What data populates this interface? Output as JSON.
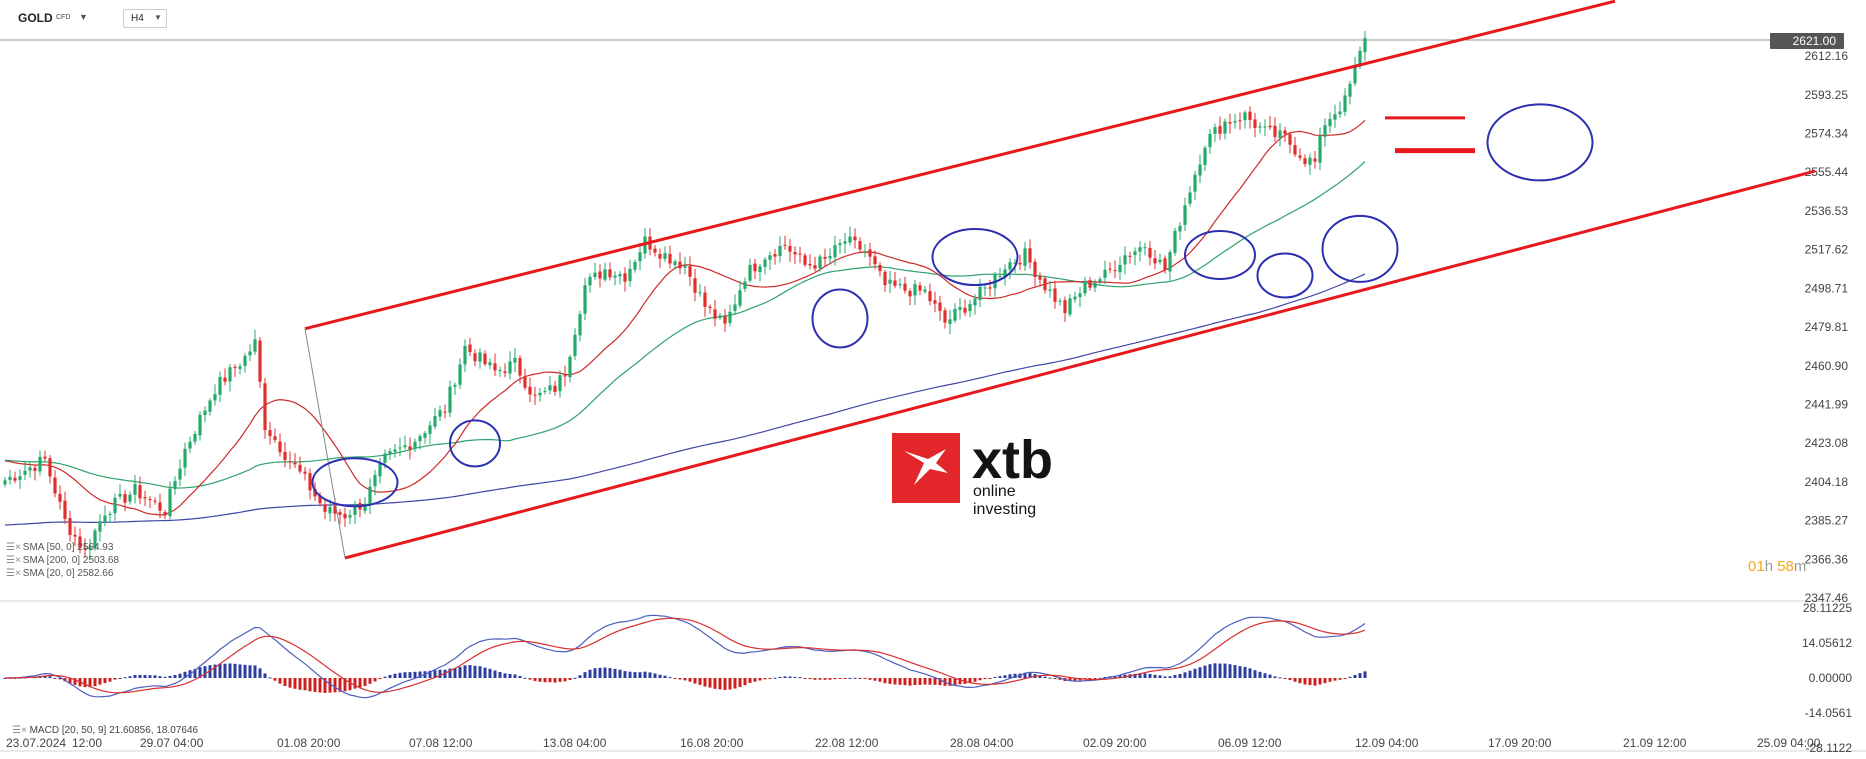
{
  "header": {
    "symbol": "GOLD",
    "symbol_type": "CFD",
    "timeframe": "H4",
    "caret_icon": "chevron-down-icon"
  },
  "last_price": "2621.00",
  "countdown": {
    "h": "01",
    "h_unit": "h",
    "m": "58",
    "m_unit": "m"
  },
  "logo": {
    "text": "xtb",
    "subtitle": "online investing",
    "color": "#e3262a"
  },
  "indicators": [
    {
      "label": "SMA [50, 0]",
      "value": "2564.93",
      "color": "#2ea36b"
    },
    {
      "label": "SMA [200, 0]",
      "value": "2503.68",
      "color": "#3f47a6"
    },
    {
      "label": "SMA [20, 0]",
      "value": "2582.66",
      "color": "#cc2a2a"
    }
  ],
  "macd": {
    "label": "MACD [20, 50, 9]",
    "macd_value": "21.60856",
    "signal_value": "18.07646"
  },
  "colors": {
    "bull": "#26a96c",
    "bear": "#e0302e",
    "sma20": "#cc2a2a",
    "sma50": "#2ea36b",
    "sma200": "#3f47a6",
    "macd_line": "#4a5fc0",
    "signal_line": "#d93030",
    "hist_pos": "#2d3d9e",
    "hist_neg": "#cc2020",
    "annotation_red": "#e8191c",
    "annotation_blue": "#2b2fb0",
    "price_tag": "#555555"
  },
  "chart_data": {
    "type": "candlestick",
    "instrument": "GOLD",
    "timeframe": "H4",
    "x_labels": [
      "23.07.2024",
      "12:00",
      "29.07 04:00",
      "01.08 20:00",
      "07.08 12:00",
      "13.08 04:00",
      "16.08 20:00",
      "22.08 12:00",
      "28.08 04:00",
      "02.09 20:00",
      "06.09 12:00",
      "12.09 04:00",
      "17.09 20:00",
      "21.09 12:00",
      "25.09 04:00"
    ],
    "price_ticks": [
      "2612.16",
      "2593.25",
      "2574.34",
      "2555.44",
      "2536.53",
      "2517.62",
      "2498.71",
      "2479.81",
      "2460.90",
      "2441.99",
      "2423.08",
      "2404.18",
      "2385.27",
      "2366.36",
      "2347.46"
    ],
    "price_range": [
      2347.46,
      2621.0
    ],
    "macd_ticks": [
      "28.11225",
      "14.05612",
      "0.00000",
      "-14.0561",
      "-28.1122"
    ],
    "macd_range": [
      -28.1122,
      28.11225
    ],
    "close_keypoints": [
      {
        "i": 0,
        "v": 2405
      },
      {
        "i": 8,
        "v": 2415
      },
      {
        "i": 12,
        "v": 2385
      },
      {
        "i": 16,
        "v": 2370
      },
      {
        "i": 20,
        "v": 2390
      },
      {
        "i": 26,
        "v": 2400
      },
      {
        "i": 32,
        "v": 2390
      },
      {
        "i": 36,
        "v": 2420
      },
      {
        "i": 42,
        "v": 2450
      },
      {
        "i": 48,
        "v": 2465
      },
      {
        "i": 50,
        "v": 2472
      },
      {
        "i": 52,
        "v": 2432
      },
      {
        "i": 56,
        "v": 2418
      },
      {
        "i": 60,
        "v": 2405
      },
      {
        "i": 64,
        "v": 2390
      },
      {
        "i": 68,
        "v": 2388
      },
      {
        "i": 72,
        "v": 2395
      },
      {
        "i": 76,
        "v": 2415
      },
      {
        "i": 82,
        "v": 2425
      },
      {
        "i": 88,
        "v": 2440
      },
      {
        "i": 92,
        "v": 2470
      },
      {
        "i": 98,
        "v": 2458
      },
      {
        "i": 102,
        "v": 2462
      },
      {
        "i": 106,
        "v": 2445
      },
      {
        "i": 110,
        "v": 2450
      },
      {
        "i": 112,
        "v": 2458
      },
      {
        "i": 116,
        "v": 2500
      },
      {
        "i": 120,
        "v": 2508
      },
      {
        "i": 124,
        "v": 2505
      },
      {
        "i": 128,
        "v": 2522
      },
      {
        "i": 132,
        "v": 2515
      },
      {
        "i": 136,
        "v": 2510
      },
      {
        "i": 140,
        "v": 2490
      },
      {
        "i": 144,
        "v": 2480
      },
      {
        "i": 148,
        "v": 2505
      },
      {
        "i": 152,
        "v": 2515
      },
      {
        "i": 156,
        "v": 2520
      },
      {
        "i": 160,
        "v": 2510
      },
      {
        "i": 164,
        "v": 2512
      },
      {
        "i": 168,
        "v": 2522
      },
      {
        "i": 172,
        "v": 2517
      },
      {
        "i": 176,
        "v": 2500
      },
      {
        "i": 180,
        "v": 2498
      },
      {
        "i": 184,
        "v": 2497
      },
      {
        "i": 188,
        "v": 2482
      },
      {
        "i": 192,
        "v": 2490
      },
      {
        "i": 196,
        "v": 2498
      },
      {
        "i": 200,
        "v": 2510
      },
      {
        "i": 204,
        "v": 2515
      },
      {
        "i": 208,
        "v": 2500
      },
      {
        "i": 212,
        "v": 2488
      },
      {
        "i": 216,
        "v": 2500
      },
      {
        "i": 220,
        "v": 2505
      },
      {
        "i": 224,
        "v": 2515
      },
      {
        "i": 228,
        "v": 2520
      },
      {
        "i": 232,
        "v": 2508
      },
      {
        "i": 236,
        "v": 2540
      },
      {
        "i": 240,
        "v": 2570
      },
      {
        "i": 244,
        "v": 2580
      },
      {
        "i": 248,
        "v": 2583
      },
      {
        "i": 252,
        "v": 2575
      },
      {
        "i": 256,
        "v": 2572
      },
      {
        "i": 260,
        "v": 2562
      },
      {
        "i": 262,
        "v": 2560
      },
      {
        "i": 264,
        "v": 2580
      },
      {
        "i": 268,
        "v": 2590
      },
      {
        "i": 272,
        "v": 2621
      }
    ],
    "annotations": {
      "channel_upper": [
        {
          "i": 60,
          "v": 2479
        },
        {
          "i": 322,
          "v": 2639
        }
      ],
      "channel_lower": [
        {
          "i": 68,
          "v": 2367
        },
        {
          "i": 362,
          "v": 2556
        }
      ],
      "levels": [
        {
          "i0": 276,
          "i1": 292,
          "v": 2582
        },
        {
          "i0": 278,
          "i1": 294,
          "v": 2566
        }
      ],
      "circles": [
        {
          "i": 70,
          "v": 2404,
          "rx_bars": 8.5,
          "ry": 24
        },
        {
          "i": 94,
          "v": 2423,
          "rx_bars": 5,
          "ry": 23
        },
        {
          "i": 167,
          "v": 2484,
          "rx_bars": 5.5,
          "ry": 29
        },
        {
          "i": 194,
          "v": 2514,
          "rx_bars": 8.5,
          "ry": 28
        },
        {
          "i": 243,
          "v": 2515,
          "rx_bars": 7,
          "ry": 24
        },
        {
          "i": 256,
          "v": 2505,
          "rx_bars": 5.5,
          "ry": 22
        },
        {
          "i": 271,
          "v": 2518,
          "rx_bars": 7.5,
          "ry": 33
        },
        {
          "i": 307,
          "v": 2570,
          "rx_bars": 10.5,
          "ry": 38
        }
      ]
    }
  }
}
